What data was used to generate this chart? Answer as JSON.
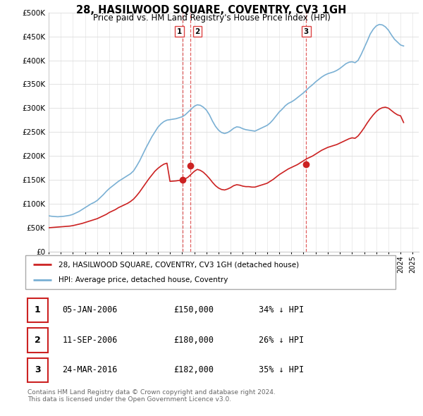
{
  "title": "28, HASILWOOD SQUARE, COVENTRY, CV3 1GH",
  "subtitle": "Price paid vs. HM Land Registry's House Price Index (HPI)",
  "ylabel_ticks": [
    "£0",
    "£50K",
    "£100K",
    "£150K",
    "£200K",
    "£250K",
    "£300K",
    "£350K",
    "£400K",
    "£450K",
    "£500K"
  ],
  "ytick_values": [
    0,
    50000,
    100000,
    150000,
    200000,
    250000,
    300000,
    350000,
    400000,
    450000,
    500000
  ],
  "ylim": [
    0,
    500000
  ],
  "xlim_start": 1995.0,
  "xlim_end": 2025.5,
  "hpi_color": "#7ab0d4",
  "price_color": "#cc2222",
  "transaction_color": "#cc2222",
  "vline_color": "#dd4444",
  "background_color": "#ffffff",
  "grid_color": "#dddddd",
  "legend_label_red": "28, HASILWOOD SQUARE, COVENTRY, CV3 1GH (detached house)",
  "legend_label_blue": "HPI: Average price, detached house, Coventry",
  "transactions": [
    {
      "num": 1,
      "date_str": "05-JAN-2006",
      "date_x": 2006.02,
      "price": 150000,
      "label": "£150,000",
      "pct": "34% ↓ HPI"
    },
    {
      "num": 2,
      "date_str": "11-SEP-2006",
      "date_x": 2006.7,
      "price": 180000,
      "label": "£180,000",
      "pct": "26% ↓ HPI"
    },
    {
      "num": 3,
      "date_str": "24-MAR-2016",
      "date_x": 2016.23,
      "price": 182000,
      "label": "£182,000",
      "pct": "35% ↓ HPI"
    }
  ],
  "footnote": "Contains HM Land Registry data © Crown copyright and database right 2024.\nThis data is licensed under the Open Government Licence v3.0.",
  "hpi_data_x": [
    1995.0,
    1995.25,
    1995.5,
    1995.75,
    1996.0,
    1996.25,
    1996.5,
    1996.75,
    1997.0,
    1997.25,
    1997.5,
    1997.75,
    1998.0,
    1998.25,
    1998.5,
    1998.75,
    1999.0,
    1999.25,
    1999.5,
    1999.75,
    2000.0,
    2000.25,
    2000.5,
    2000.75,
    2001.0,
    2001.25,
    2001.5,
    2001.75,
    2002.0,
    2002.25,
    2002.5,
    2002.75,
    2003.0,
    2003.25,
    2003.5,
    2003.75,
    2004.0,
    2004.25,
    2004.5,
    2004.75,
    2005.0,
    2005.25,
    2005.5,
    2005.75,
    2006.0,
    2006.25,
    2006.5,
    2006.75,
    2007.0,
    2007.25,
    2007.5,
    2007.75,
    2008.0,
    2008.25,
    2008.5,
    2008.75,
    2009.0,
    2009.25,
    2009.5,
    2009.75,
    2010.0,
    2010.25,
    2010.5,
    2010.75,
    2011.0,
    2011.25,
    2011.5,
    2011.75,
    2012.0,
    2012.25,
    2012.5,
    2012.75,
    2013.0,
    2013.25,
    2013.5,
    2013.75,
    2014.0,
    2014.25,
    2014.5,
    2014.75,
    2015.0,
    2015.25,
    2015.5,
    2015.75,
    2016.0,
    2016.25,
    2016.5,
    2016.75,
    2017.0,
    2017.25,
    2017.5,
    2017.75,
    2018.0,
    2018.25,
    2018.5,
    2018.75,
    2019.0,
    2019.25,
    2019.5,
    2019.75,
    2020.0,
    2020.25,
    2020.5,
    2020.75,
    2021.0,
    2021.25,
    2021.5,
    2021.75,
    2022.0,
    2022.25,
    2022.5,
    2022.75,
    2023.0,
    2023.25,
    2023.5,
    2023.75,
    2024.0,
    2024.25
  ],
  "hpi_data_y": [
    75000,
    74000,
    73500,
    73000,
    73500,
    74000,
    75000,
    76000,
    78000,
    81000,
    84000,
    88000,
    92000,
    96000,
    100000,
    103000,
    107000,
    113000,
    119000,
    126000,
    132000,
    137000,
    142000,
    147000,
    151000,
    155000,
    159000,
    163000,
    169000,
    179000,
    190000,
    203000,
    216000,
    228000,
    240000,
    250000,
    260000,
    267000,
    272000,
    275000,
    276000,
    277000,
    278000,
    280000,
    282000,
    286000,
    292000,
    298000,
    304000,
    307000,
    306000,
    302000,
    296000,
    286000,
    273000,
    262000,
    254000,
    249000,
    247000,
    249000,
    253000,
    258000,
    261000,
    260000,
    257000,
    255000,
    254000,
    253000,
    252000,
    255000,
    258000,
    261000,
    264000,
    269000,
    276000,
    284000,
    292000,
    298000,
    305000,
    310000,
    313000,
    317000,
    322000,
    327000,
    332000,
    338000,
    344000,
    349000,
    355000,
    360000,
    365000,
    369000,
    372000,
    374000,
    376000,
    379000,
    383000,
    388000,
    393000,
    396000,
    397000,
    395000,
    400000,
    412000,
    426000,
    440000,
    455000,
    465000,
    472000,
    475000,
    474000,
    470000,
    463000,
    453000,
    444000,
    438000,
    432000,
    430000
  ],
  "price_data_x": [
    1995.0,
    1995.25,
    1995.5,
    1995.75,
    1996.0,
    1996.25,
    1996.5,
    1996.75,
    1997.0,
    1997.25,
    1997.5,
    1997.75,
    1998.0,
    1998.25,
    1998.5,
    1998.75,
    1999.0,
    1999.25,
    1999.5,
    1999.75,
    2000.0,
    2000.25,
    2000.5,
    2000.75,
    2001.0,
    2001.25,
    2001.5,
    2001.75,
    2002.0,
    2002.25,
    2002.5,
    2002.75,
    2003.0,
    2003.25,
    2003.5,
    2003.75,
    2004.0,
    2004.25,
    2004.5,
    2004.75,
    2005.0,
    2005.25,
    2005.5,
    2005.75,
    2006.0,
    2006.25,
    2006.5,
    2006.75,
    2007.0,
    2007.25,
    2007.5,
    2007.75,
    2008.0,
    2008.25,
    2008.5,
    2008.75,
    2009.0,
    2009.25,
    2009.5,
    2009.75,
    2010.0,
    2010.25,
    2010.5,
    2010.75,
    2011.0,
    2011.25,
    2011.5,
    2011.75,
    2012.0,
    2012.25,
    2012.5,
    2012.75,
    2013.0,
    2013.25,
    2013.5,
    2013.75,
    2014.0,
    2014.25,
    2014.5,
    2014.75,
    2015.0,
    2015.25,
    2015.5,
    2015.75,
    2016.0,
    2016.25,
    2016.5,
    2016.75,
    2017.0,
    2017.25,
    2017.5,
    2017.75,
    2018.0,
    2018.25,
    2018.5,
    2018.75,
    2019.0,
    2019.25,
    2019.5,
    2019.75,
    2020.0,
    2020.25,
    2020.5,
    2020.75,
    2021.0,
    2021.25,
    2021.5,
    2021.75,
    2022.0,
    2022.25,
    2022.5,
    2022.75,
    2023.0,
    2023.25,
    2023.5,
    2023.75,
    2024.0,
    2024.25
  ],
  "price_data_y": [
    50000,
    50500,
    51000,
    51500,
    52000,
    52500,
    53000,
    53500,
    54500,
    56000,
    57500,
    59000,
    61000,
    63000,
    65000,
    67000,
    69000,
    72000,
    75000,
    78000,
    82000,
    85000,
    88000,
    92000,
    95000,
    98000,
    101000,
    105000,
    110000,
    117000,
    125000,
    134000,
    143000,
    152000,
    160000,
    168000,
    174000,
    179000,
    183000,
    185000,
    147000,
    147500,
    148000,
    149000,
    150000,
    152000,
    156000,
    162000,
    168000,
    172000,
    170000,
    166000,
    160000,
    153000,
    145000,
    138000,
    133000,
    130000,
    129000,
    131000,
    134000,
    138000,
    140000,
    139000,
    137000,
    136000,
    136000,
    135000,
    135000,
    137000,
    139000,
    141000,
    143000,
    147000,
    151000,
    156000,
    161000,
    165000,
    169000,
    173000,
    176000,
    179000,
    182000,
    186000,
    190000,
    194000,
    197000,
    200000,
    204000,
    208000,
    212000,
    215000,
    218000,
    220000,
    222000,
    224000,
    227000,
    230000,
    233000,
    236000,
    238000,
    237000,
    242000,
    250000,
    259000,
    269000,
    278000,
    286000,
    293000,
    298000,
    301000,
    302000,
    300000,
    295000,
    290000,
    286000,
    284000,
    270000
  ]
}
